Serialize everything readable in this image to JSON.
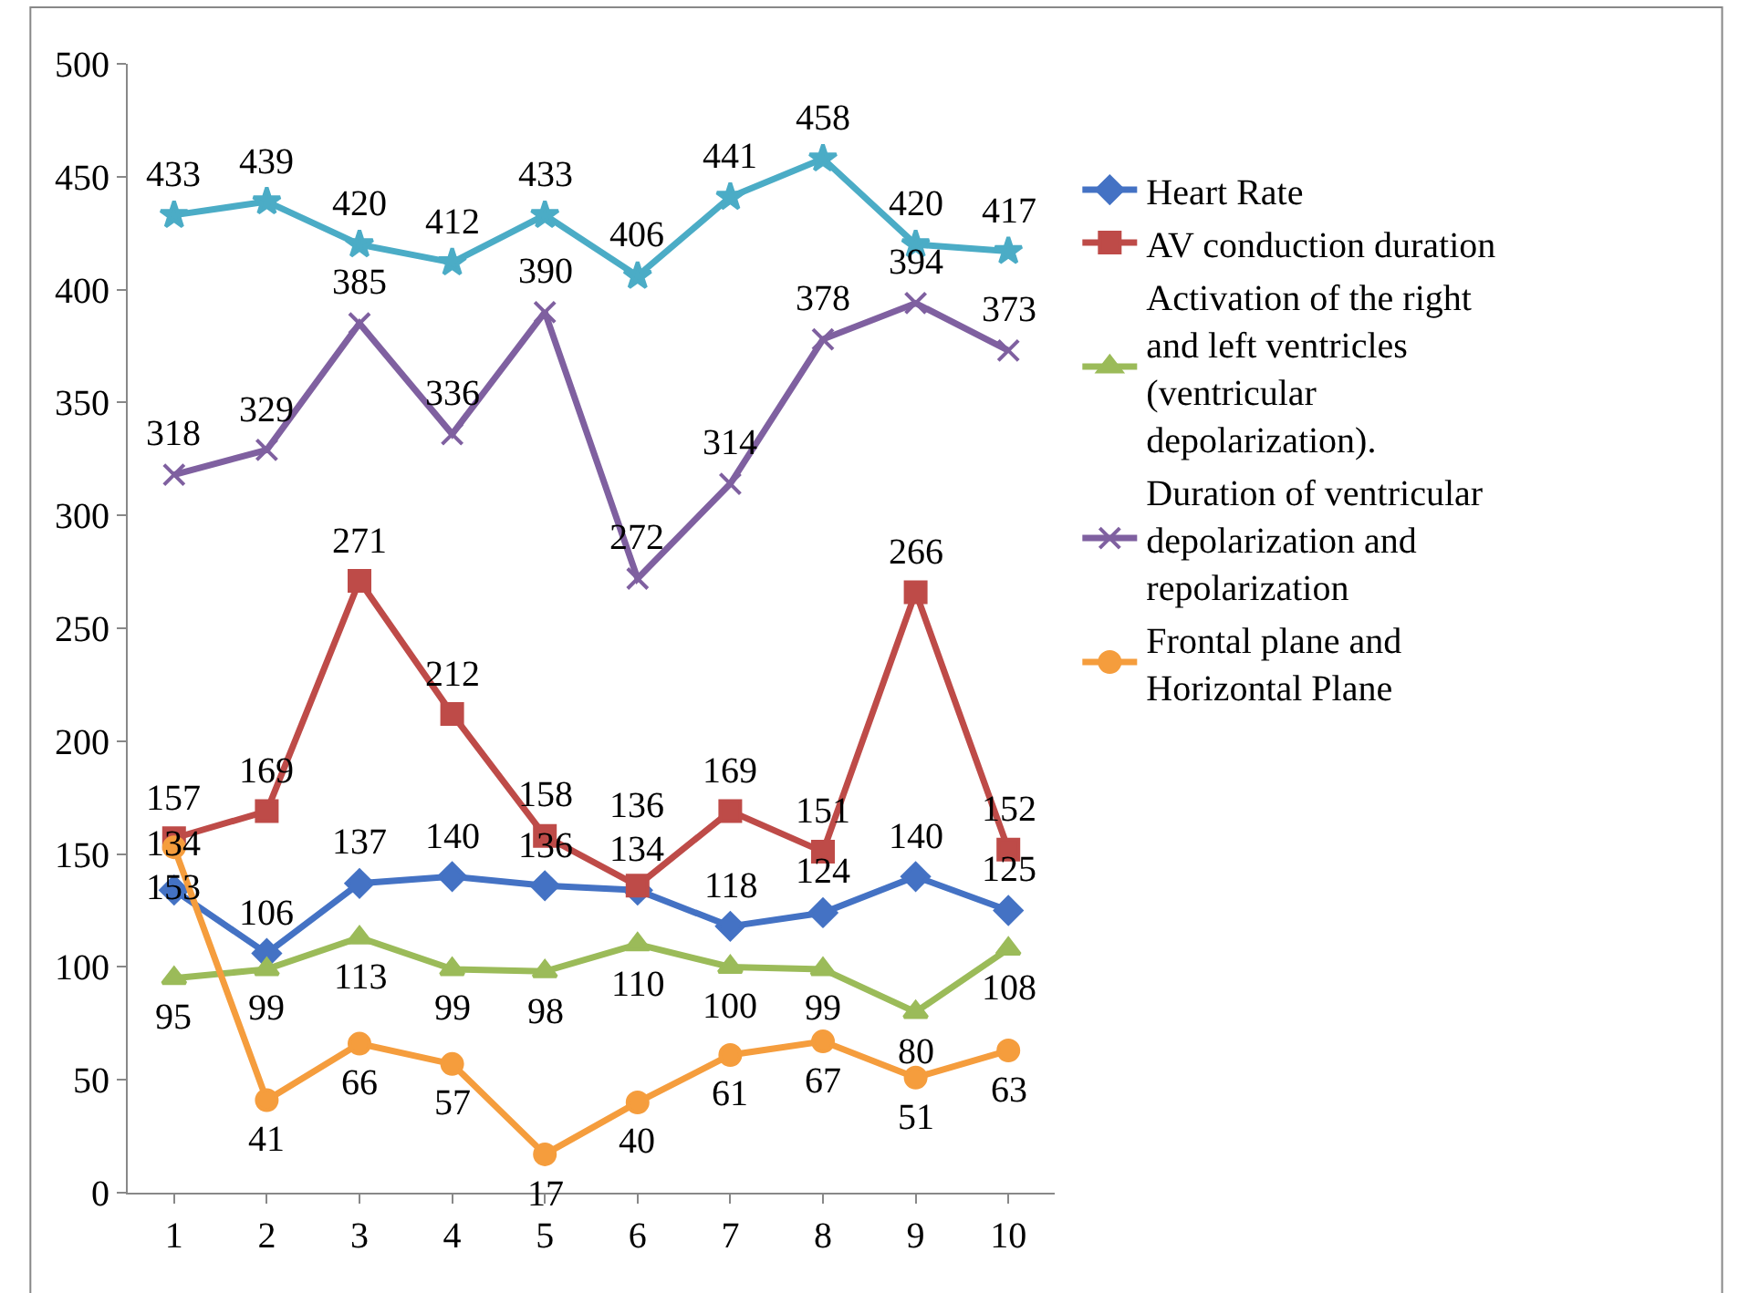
{
  "chart_data": {
    "type": "line",
    "categories": [
      "1",
      "2",
      "3",
      "4",
      "5",
      "6",
      "7",
      "8",
      "9",
      "10"
    ],
    "ylim": [
      0,
      500
    ],
    "yticks": [
      0,
      50,
      100,
      150,
      200,
      250,
      300,
      350,
      400,
      450,
      500
    ],
    "legend": "right",
    "data_labels": true,
    "line_style": "solid",
    "series": [
      {
        "name": "Heart Rate",
        "color": "#4472c4",
        "marker": "diamond",
        "values": [
          134,
          106,
          137,
          140,
          136,
          134,
          118,
          124,
          140,
          125
        ]
      },
      {
        "name": "AV conduction duration",
        "color": "#be4b48",
        "marker": "square",
        "values": [
          157,
          169,
          271,
          212,
          158,
          136,
          169,
          151,
          266,
          152
        ]
      },
      {
        "name": "Activation of the right and left ventricles (ventricular depolarization).",
        "color": "#9bbb59",
        "marker": "triangle",
        "values": [
          95,
          99,
          113,
          99,
          98,
          110,
          100,
          99,
          80,
          108
        ]
      },
      {
        "name": "Duration of ventricular depolarization and repolarization",
        "color": "#7f60a0",
        "marker": "cross",
        "values": [
          318,
          329,
          385,
          336,
          390,
          272,
          314,
          378,
          394,
          373
        ]
      },
      {
        "name": "Frontal plane and Horizontal Plane",
        "color": "#f59d3d",
        "marker": "circle",
        "values": [
          153,
          41,
          66,
          57,
          17,
          40,
          61,
          67,
          51,
          63
        ]
      },
      {
        "color": "#4bacc6",
        "marker": "star",
        "values": [
          433,
          439,
          420,
          412,
          433,
          406,
          441,
          458,
          420,
          417
        ]
      }
    ]
  }
}
